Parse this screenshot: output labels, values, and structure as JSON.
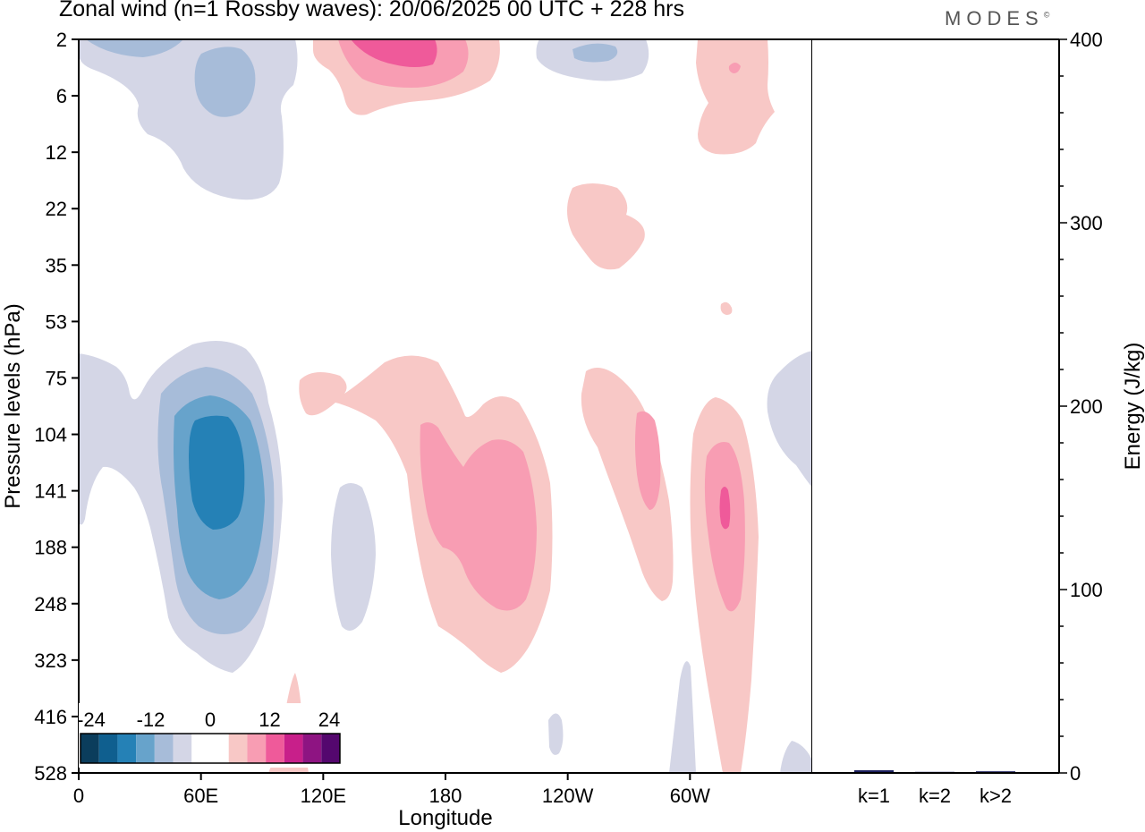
{
  "header": {
    "title": "Zonal wind (n=1 Rossby waves):  20/06/2025  00 UTC  + 228 hrs",
    "brand": "MODES",
    "brand_mark": "©"
  },
  "colors": {
    "neg_1": "#d4d6e6",
    "neg_2": "#a7bcd9",
    "neg_3": "#67a3cb",
    "neg_4": "#2581b6",
    "pos_1": "#f8c8c6",
    "pos_2": "#f89db3",
    "pos_3": "#ef5a9a",
    "axis": "#000000",
    "bar": "#1b1f5e"
  },
  "chart_data": [
    {
      "type": "heatmap",
      "title": "Zonal wind (n=1 Rossby waves):  20/06/2025  00 UTC  + 228 hrs",
      "xlabel": "Longitude",
      "ylabel": "Pressure levels (hPa)",
      "x_ticks": [
        "0",
        "60E",
        "120E",
        "180",
        "120W",
        "60W"
      ],
      "x_tick_values": [
        0,
        60,
        120,
        180,
        240,
        300
      ],
      "xlim": [
        0,
        360
      ],
      "y_ticks": [
        "2",
        "6",
        "12",
        "22",
        "35",
        "53",
        "75",
        "104",
        "141",
        "188",
        "248",
        "323",
        "416",
        "528"
      ],
      "y_reversed": true,
      "colorbar_labels": [
        "-24",
        "-12",
        "0",
        "12",
        "24"
      ],
      "colorbar_colors": [
        "#0b3d5c",
        "#0f5f8f",
        "#2581b6",
        "#67a3cb",
        "#a7bcd9",
        "#d4d6e6",
        "#ffffff",
        "#ffffff",
        "#f8c8c6",
        "#f89db3",
        "#ef5a9a",
        "#c81f8a",
        "#8e1482",
        "#54076e"
      ],
      "features": [
        {
          "sign": "negative",
          "peak": -18,
          "lon": 68,
          "level": "141"
        },
        {
          "sign": "positive",
          "peak": 12,
          "lon": 207,
          "level": "141"
        },
        {
          "sign": "positive",
          "peak": 12,
          "lon": 318,
          "level": "141"
        },
        {
          "sign": "positive",
          "peak": 9,
          "lon": 278,
          "level": "141"
        },
        {
          "sign": "positive",
          "peak": 12,
          "lon": 160,
          "level": "2"
        },
        {
          "sign": "negative",
          "peak": -6,
          "lon": 72,
          "level": "6"
        }
      ]
    },
    {
      "type": "bar",
      "ylabel": "Energy (J/kg)",
      "ylim": [
        0,
        400
      ],
      "y_ticks": [
        "0",
        "100",
        "200",
        "300",
        "400"
      ],
      "y_tick_values": [
        0,
        100,
        200,
        300,
        400
      ],
      "categories": [
        "k=1",
        "k=2",
        "k>2"
      ],
      "values": [
        1.5,
        0.6,
        0.9
      ]
    }
  ]
}
